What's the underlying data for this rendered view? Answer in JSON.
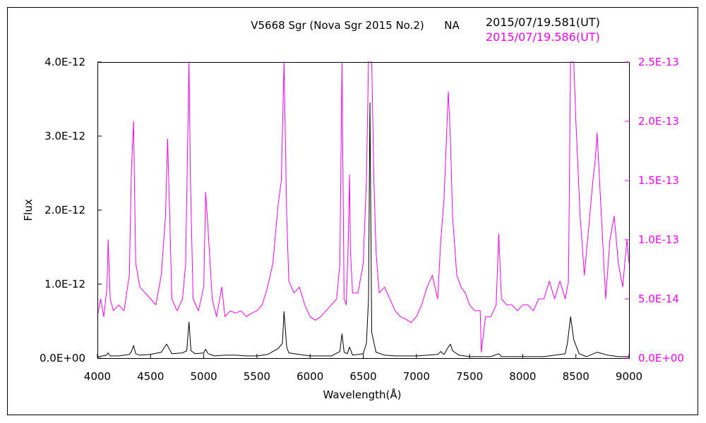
{
  "chart_data": {
    "type": "line",
    "title": "V5668 Sgr (Nova Sgr 2015 No.2)",
    "observer": "NA",
    "xlabel": "Wavelength(Å)",
    "ylabel": "Flux",
    "xlim": [
      4000,
      9000
    ],
    "ylim_left": [
      0,
      4e-12
    ],
    "ylim_right": [
      0,
      2.5e-13
    ],
    "x_ticks": [
      "4000",
      "4500",
      "5000",
      "5500",
      "6000",
      "6500",
      "7000",
      "7500",
      "8000",
      "8500",
      "9000"
    ],
    "y_ticks_left": [
      "0.0E+00",
      "1.0E-12",
      "2.0E-12",
      "3.0E-12",
      "4.0E-12"
    ],
    "y_ticks_right": [
      "0.0E+00",
      "5.0E-14",
      "1.0E-13",
      "1.5E-13",
      "2.0E-13",
      "2.5E-13"
    ],
    "grid": false,
    "series": [
      {
        "name": "2015/07/19.581(UT)",
        "color": "#000000",
        "axis": "left",
        "x": [
          4000,
          4050,
          4085,
          4100,
          4120,
          4200,
          4300,
          4320,
          4340,
          4360,
          4400,
          4500,
          4600,
          4650,
          4670,
          4700,
          4800,
          4840,
          4861,
          4880,
          4920,
          5000,
          5018,
          5040,
          5100,
          5200,
          5300,
          5400,
          5500,
          5600,
          5700,
          5740,
          5755,
          5780,
          5800,
          5900,
          6000,
          6100,
          6200,
          6280,
          6300,
          6320,
          6350,
          6371,
          6400,
          6500,
          6530,
          6550,
          6563,
          6580,
          6620,
          6700,
          6800,
          7000,
          7200,
          7230,
          7260,
          7300,
          7320,
          7340,
          7400,
          7500,
          7700,
          7774,
          7800,
          8000,
          8200,
          8400,
          8420,
          8450,
          8480,
          8530,
          8600,
          8700,
          8800,
          8900,
          9000
        ],
        "values": [
          2e-14,
          3e-14,
          4e-14,
          7e-14,
          3e-14,
          3e-14,
          5e-14,
          9e-14,
          1.7e-13,
          6e-14,
          4e-14,
          5e-14,
          8e-14,
          1.9e-13,
          1.4e-13,
          6e-14,
          7e-14,
          1e-13,
          4.9e-13,
          1e-13,
          6e-14,
          7e-14,
          1.2e-13,
          6e-14,
          3e-14,
          4e-14,
          4e-14,
          3e-14,
          3e-14,
          5e-14,
          1.3e-13,
          2e-13,
          6.3e-13,
          1.5e-13,
          7e-14,
          5e-14,
          3e-14,
          3e-14,
          3e-14,
          9e-14,
          3.3e-13,
          8e-14,
          6e-14,
          1.5e-13,
          4e-14,
          6e-14,
          2e-13,
          8e-13,
          3.45e-12,
          3.5e-13,
          8e-14,
          4e-14,
          3e-14,
          3e-14,
          5e-14,
          9e-14,
          5e-14,
          1.5e-13,
          1.9e-13,
          1e-13,
          4e-14,
          2e-14,
          2e-14,
          6e-14,
          2e-14,
          2e-14,
          2e-14,
          6e-14,
          2e-13,
          5.6e-13,
          2.5e-13,
          6e-14,
          2e-14,
          8e-14,
          4e-14,
          2e-14,
          2e-14
        ]
      },
      {
        "name": "2015/07/19.586(UT)",
        "color": "#ff00ff",
        "axis": "right",
        "x": [
          4000,
          4030,
          4060,
          4090,
          4101,
          4120,
          4150,
          4200,
          4250,
          4300,
          4320,
          4340,
          4360,
          4400,
          4450,
          4500,
          4550,
          4600,
          4640,
          4660,
          4680,
          4700,
          4750,
          4800,
          4830,
          4850,
          4861,
          4875,
          4900,
          4950,
          5000,
          5018,
          5040,
          5080,
          5120,
          5169,
          5200,
          5250,
          5300,
          5350,
          5400,
          5450,
          5500,
          5550,
          5600,
          5650,
          5700,
          5730,
          5755,
          5780,
          5800,
          5850,
          5900,
          5950,
          6000,
          6050,
          6100,
          6150,
          6200,
          6250,
          6280,
          6300,
          6320,
          6340,
          6360,
          6371,
          6380,
          6400,
          6450,
          6500,
          6530,
          6550,
          6563,
          6580,
          6600,
          6620,
          6650,
          6700,
          6750,
          6800,
          6850,
          6900,
          6950,
          7000,
          7050,
          7100,
          7150,
          7200,
          7230,
          7260,
          7300,
          7320,
          7340,
          7380,
          7420,
          7460,
          7500,
          7550,
          7600,
          7610,
          7650,
          7700,
          7750,
          7774,
          7800,
          7850,
          7900,
          7950,
          8000,
          8050,
          8100,
          8150,
          8200,
          8250,
          8300,
          8350,
          8400,
          8430,
          8450,
          8480,
          8500,
          8540,
          8580,
          8620,
          8660,
          8680,
          8700,
          8740,
          8780,
          8820,
          8860,
          8900,
          8940,
          8980,
          9000
        ],
        "values": [
          3.5e-14,
          5e-14,
          3.5e-14,
          6e-14,
          1e-13,
          5e-14,
          4e-14,
          4.5e-14,
          4e-14,
          7e-14,
          1.6e-13,
          2e-13,
          8e-14,
          6e-14,
          5.5e-14,
          5e-14,
          4.5e-14,
          7e-14,
          1.2e-13,
          1.85e-13,
          1.2e-13,
          5e-14,
          4e-14,
          5e-14,
          8e-14,
          1.9e-13,
          2.5e-13,
          1.5e-13,
          5e-14,
          4e-14,
          6e-14,
          1.4e-13,
          1.1e-13,
          5e-14,
          3.5e-14,
          6e-14,
          3.5e-14,
          4e-14,
          3.8e-14,
          4e-14,
          3.5e-14,
          3.8e-14,
          4e-14,
          4.5e-14,
          6e-14,
          8e-14,
          1.3e-13,
          1.5e-13,
          2.5e-13,
          1.2e-13,
          6.5e-14,
          5.5e-14,
          6e-14,
          4.5e-14,
          3.5e-14,
          3.2e-14,
          3.5e-14,
          4e-14,
          4.5e-14,
          5e-14,
          8e-14,
          2.5e-13,
          5e-14,
          4.5e-14,
          1e-13,
          1.55e-13,
          9e-14,
          5.5e-14,
          5.5e-14,
          8e-14,
          1.5e-13,
          2.5e-13,
          2.5e-13,
          2.5e-13,
          1.5e-13,
          9e-14,
          5.5e-14,
          6e-14,
          5e-14,
          4e-14,
          3.5e-14,
          3.3e-14,
          3e-14,
          3.5e-14,
          4.5e-14,
          6e-14,
          7e-14,
          5e-14,
          1e-13,
          1.35e-13,
          2.25e-13,
          1.85e-13,
          1.2e-13,
          7e-14,
          6e-14,
          5.5e-14,
          4.5e-14,
          4e-14,
          4e-14,
          5e-15,
          3.5e-14,
          3.5e-14,
          4.5e-14,
          1.05e-13,
          5e-14,
          4.5e-14,
          4.5e-14,
          4e-14,
          4.5e-14,
          4.5e-14,
          4e-14,
          5e-14,
          5e-14,
          6.5e-14,
          5e-14,
          6.5e-14,
          5e-14,
          6.5e-14,
          2.5e-13,
          2.5e-13,
          2e-13,
          1.2e-13,
          7e-14,
          1.1e-13,
          1.5e-13,
          1.65e-13,
          1.9e-13,
          1.2e-13,
          5e-14,
          1e-13,
          1.2e-13,
          8e-14,
          6e-14,
          1e-13,
          8e-14
        ]
      }
    ]
  }
}
